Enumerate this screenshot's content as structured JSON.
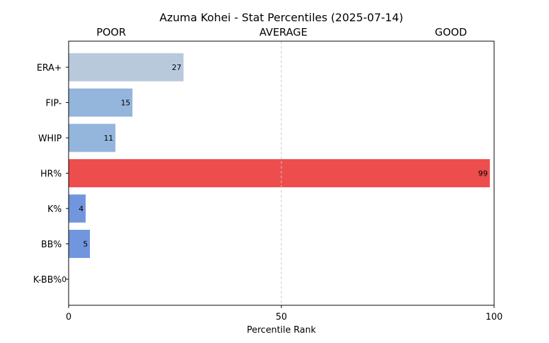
{
  "chart_data": {
    "type": "bar",
    "orientation": "horizontal",
    "title": "Azuma Kohei - Stat Percentiles (2025-07-14)",
    "xlabel": "Percentile Rank",
    "ylabel": "",
    "xlim": [
      0,
      100
    ],
    "x_ticks": [
      0,
      50,
      100
    ],
    "top_labels": {
      "poor": "POOR",
      "average": "AVERAGE",
      "good": "GOOD"
    },
    "grid": "vertical dashed line at 50",
    "categories": [
      "ERA+",
      "FIP-",
      "WHIP",
      "HR%",
      "K%",
      "BB%",
      "K-BB%"
    ],
    "values": [
      27,
      15,
      11,
      99,
      4,
      5,
      0
    ],
    "bar_colors": [
      "#b8c9dc",
      "#94b5dc",
      "#94b5dc",
      "#ee4d4d",
      "#7196de",
      "#7196de",
      "#7196de"
    ]
  }
}
